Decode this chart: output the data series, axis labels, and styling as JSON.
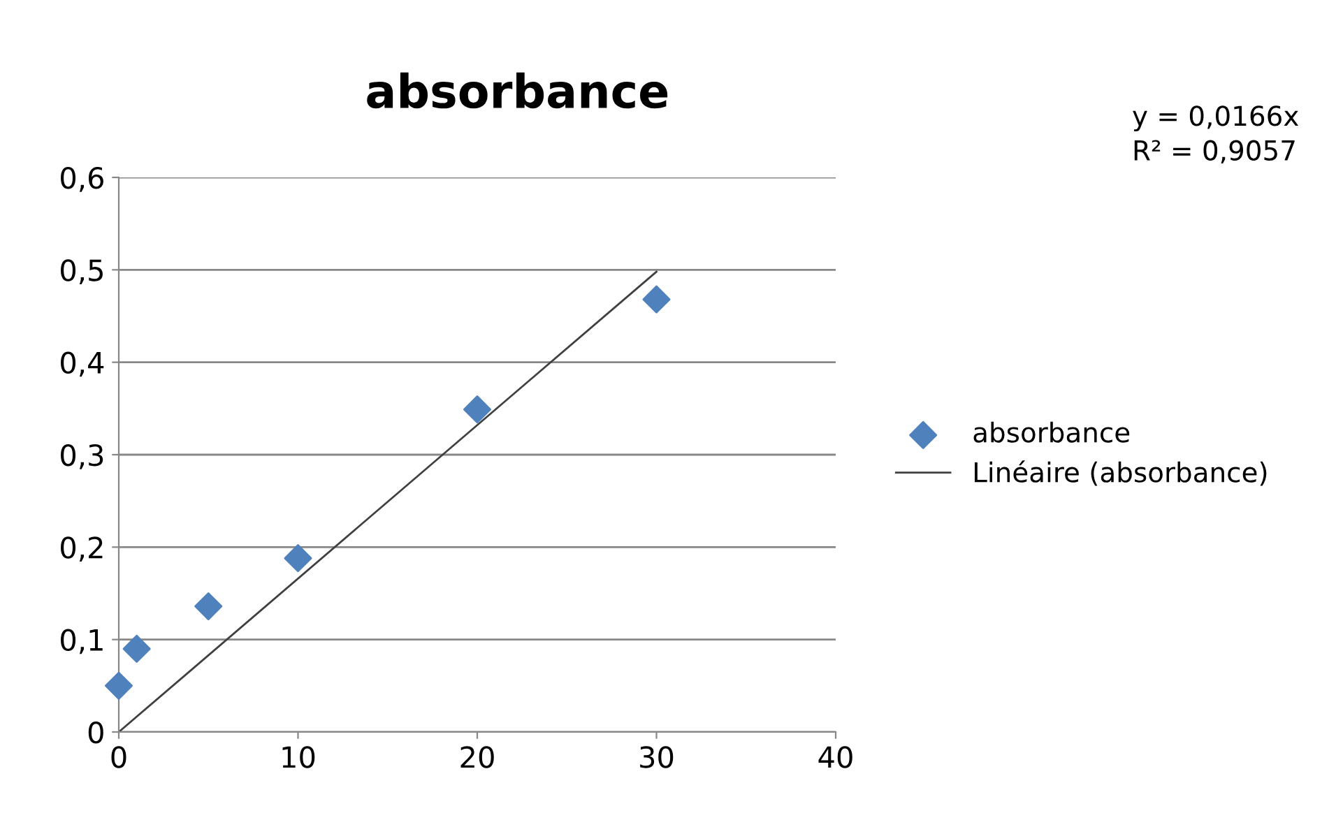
{
  "chart_data": {
    "type": "scatter",
    "title": "absorbance",
    "annotations": [
      "y = 0,0166x\nR² = 0,9057"
    ],
    "xlim": [
      0,
      40
    ],
    "xticks": [
      0,
      10,
      20,
      30,
      40
    ],
    "ylim": [
      0,
      0.6
    ],
    "yticks": [
      {
        "value": 0,
        "label": "0"
      },
      {
        "value": 0.1,
        "label": "0,1"
      },
      {
        "value": 0.2,
        "label": "0,2"
      },
      {
        "value": 0.3,
        "label": "0,3"
      },
      {
        "value": 0.4,
        "label": "0,4"
      },
      {
        "value": 0.5,
        "label": "0,5"
      },
      {
        "value": 0.6,
        "label": "0,6"
      }
    ],
    "grid": "y",
    "legend": "right",
    "series": [
      {
        "name": "absorbance",
        "marker": "diamond",
        "color": "#4f81bd",
        "x": [
          0,
          1,
          5,
          10,
          20,
          30
        ],
        "values": [
          0.05,
          0.09,
          0.136,
          0.188,
          0.349,
          0.468
        ]
      },
      {
        "name": "Linéaire (absorbance)",
        "type": "line",
        "marker": "none",
        "line_style": "solid",
        "color": "#404040",
        "x": [
          0,
          30
        ],
        "values": [
          0,
          0.498
        ]
      }
    ]
  }
}
